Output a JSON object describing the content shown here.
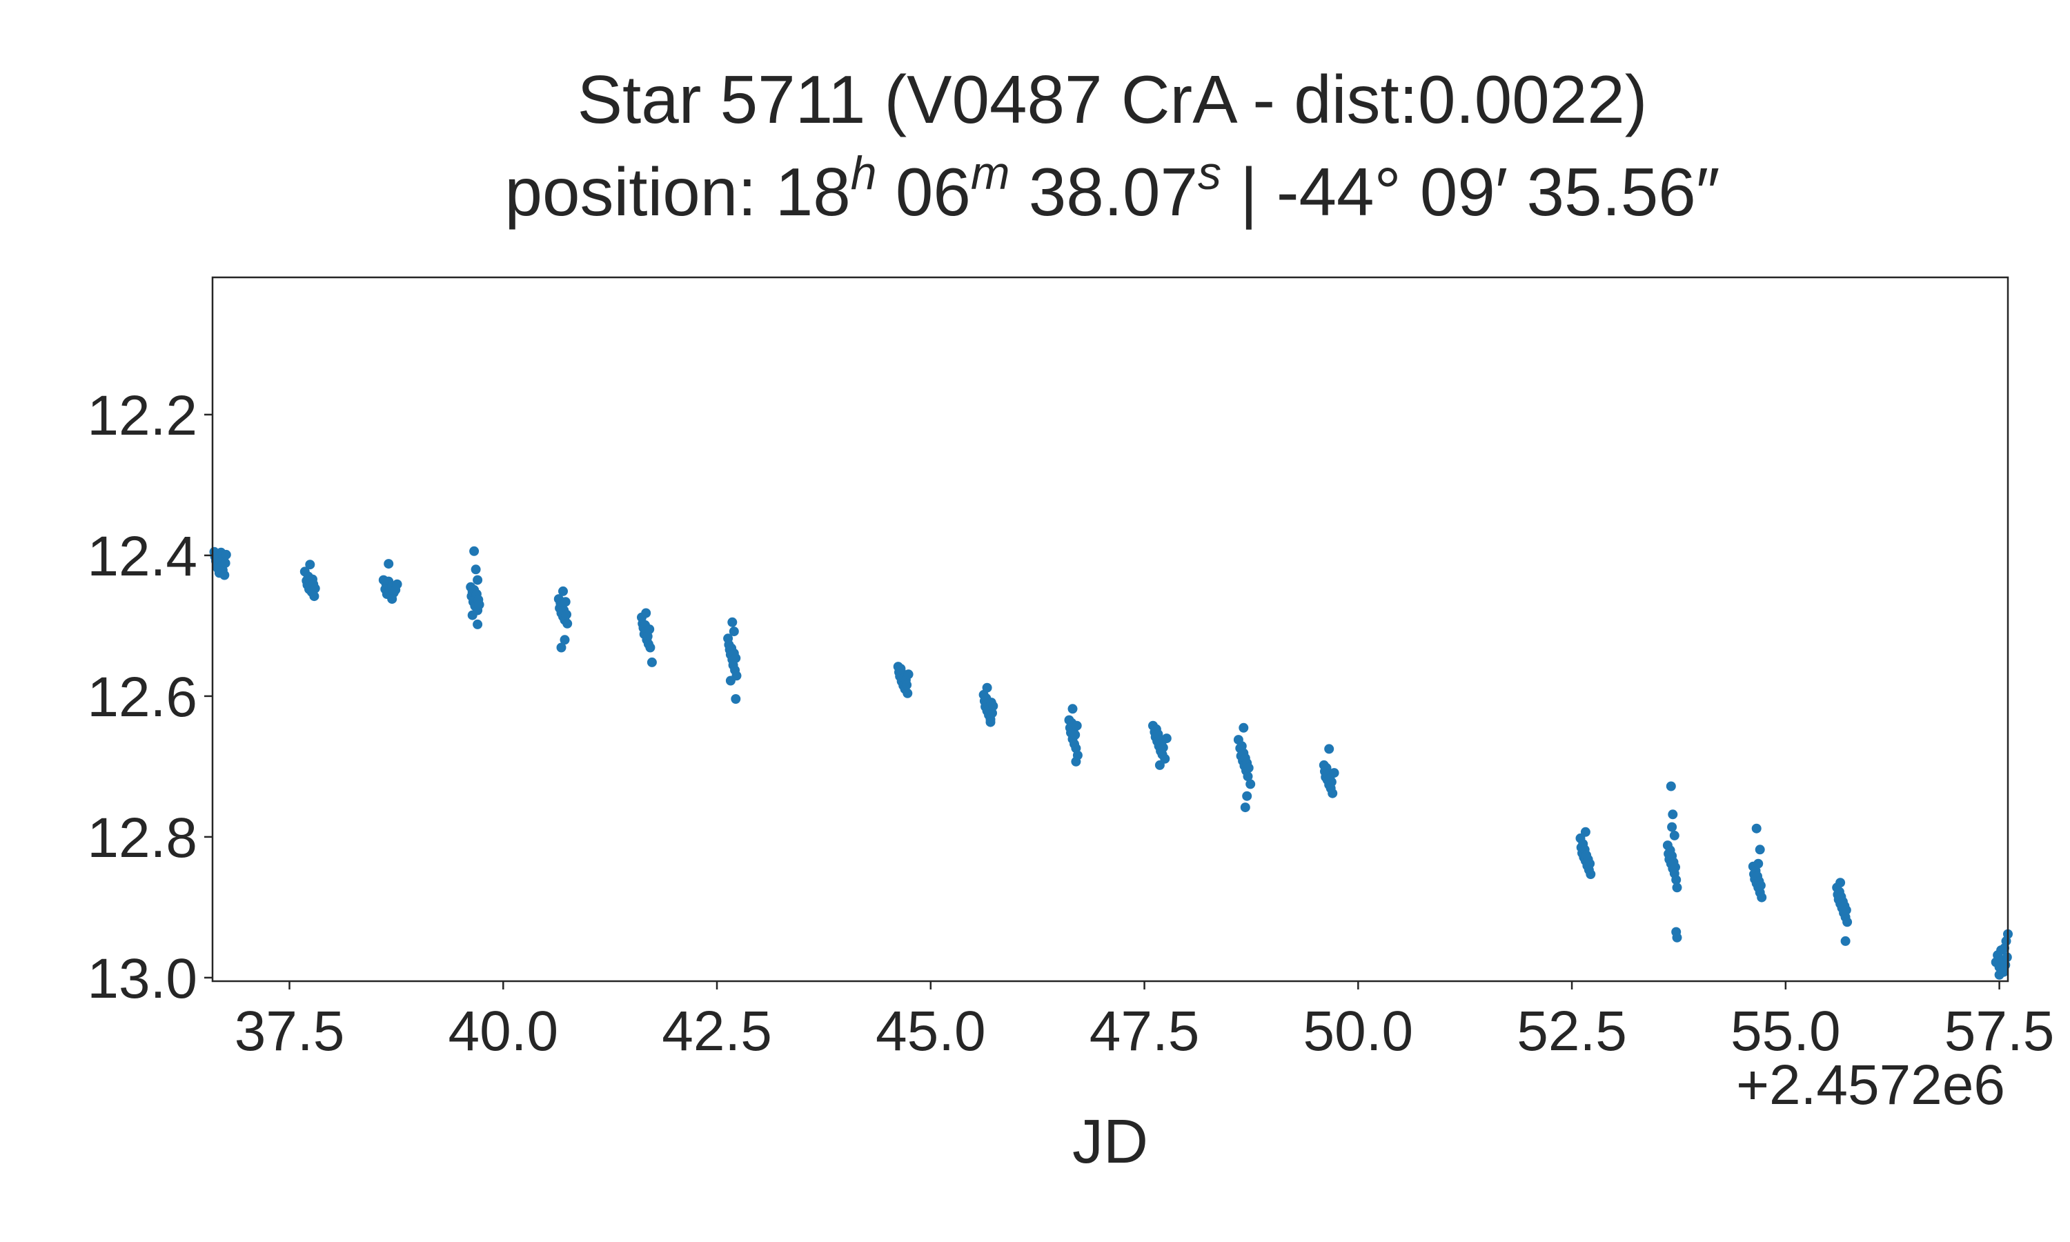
{
  "chart_data": {
    "type": "scatter",
    "title": "Star 5711 (V0487 CrA - dist:0.0022)",
    "subtitle": {
      "prefix": "position: 18",
      "sup_h": "h",
      "part2": " 06",
      "sup_m": "m",
      "part3": " 38.07",
      "sup_s": "s",
      "part4": " | -44° 09′ 35.56″"
    },
    "xlabel": "JD",
    "ylabel": "",
    "x_offset_label": "+2.4572e6",
    "x_offset": 2457200,
    "xlim": [
      36.6,
      57.6
    ],
    "ylim": [
      13.005,
      12.005
    ],
    "y_inverted": true,
    "x_ticks": [
      37.5,
      40.0,
      42.5,
      45.0,
      47.5,
      50.0,
      52.5,
      55.0,
      57.5
    ],
    "x_tick_labels": [
      "37.5",
      "40.0",
      "42.5",
      "45.0",
      "47.5",
      "50.0",
      "52.5",
      "55.0",
      "57.5"
    ],
    "y_ticks": [
      12.2,
      12.4,
      12.6,
      12.8,
      13.0
    ],
    "y_tick_labels": [
      "12.2",
      "12.4",
      "12.6",
      "12.8",
      "13.0"
    ],
    "grid": false,
    "marker_color": "#1f77b4",
    "series": [
      {
        "points": [
          [
            36.62,
            12.395
          ],
          [
            36.63,
            12.402
          ],
          [
            36.64,
            12.408
          ],
          [
            36.65,
            12.412
          ],
          [
            36.66,
            12.418
          ],
          [
            36.67,
            12.401
          ],
          [
            36.68,
            12.425
          ],
          [
            36.69,
            12.409
          ],
          [
            36.7,
            12.396
          ],
          [
            36.71,
            12.415
          ],
          [
            36.72,
            12.421
          ],
          [
            36.73,
            12.404
          ],
          [
            36.74,
            12.428
          ],
          [
            36.75,
            12.411
          ],
          [
            36.76,
            12.399
          ],
          [
            37.68,
            12.423
          ],
          [
            37.7,
            12.436
          ],
          [
            37.71,
            12.442
          ],
          [
            37.72,
            12.43
          ],
          [
            37.73,
            12.448
          ],
          [
            37.74,
            12.437
          ],
          [
            37.75,
            12.445
          ],
          [
            37.76,
            12.452
          ],
          [
            37.77,
            12.434
          ],
          [
            37.78,
            12.441
          ],
          [
            37.79,
            12.458
          ],
          [
            37.8,
            12.447
          ],
          [
            37.74,
            12.413
          ],
          [
            38.6,
            12.435
          ],
          [
            38.62,
            12.448
          ],
          [
            38.63,
            12.44
          ],
          [
            38.64,
            12.455
          ],
          [
            38.65,
            12.442
          ],
          [
            38.66,
            12.437
          ],
          [
            38.67,
            12.451
          ],
          [
            38.68,
            12.446
          ],
          [
            38.69,
            12.458
          ],
          [
            38.7,
            12.444
          ],
          [
            38.72,
            12.453
          ],
          [
            38.74,
            12.449
          ],
          [
            38.76,
            12.441
          ],
          [
            38.66,
            12.412
          ],
          [
            38.7,
            12.462
          ],
          [
            39.62,
            12.445
          ],
          [
            39.63,
            12.458
          ],
          [
            39.64,
            12.452
          ],
          [
            39.65,
            12.466
          ],
          [
            39.66,
            12.449
          ],
          [
            39.67,
            12.472
          ],
          [
            39.68,
            12.461
          ],
          [
            39.69,
            12.455
          ],
          [
            39.7,
            12.478
          ],
          [
            39.71,
            12.463
          ],
          [
            39.72,
            12.47
          ],
          [
            39.66,
            12.394
          ],
          [
            39.68,
            12.42
          ],
          [
            39.7,
            12.435
          ],
          [
            39.64,
            12.485
          ],
          [
            39.7,
            12.498
          ],
          [
            40.65,
            12.462
          ],
          [
            40.66,
            12.475
          ],
          [
            40.67,
            12.468
          ],
          [
            40.68,
            12.482
          ],
          [
            40.69,
            12.471
          ],
          [
            40.7,
            12.487
          ],
          [
            40.71,
            12.478
          ],
          [
            40.72,
            12.492
          ],
          [
            40.73,
            12.466
          ],
          [
            40.74,
            12.484
          ],
          [
            40.75,
            12.497
          ],
          [
            40.7,
            12.451
          ],
          [
            40.68,
            12.531
          ],
          [
            40.72,
            12.52
          ],
          [
            41.62,
            12.488
          ],
          [
            41.63,
            12.497
          ],
          [
            41.64,
            12.503
          ],
          [
            41.65,
            12.512
          ],
          [
            41.66,
            12.499
          ],
          [
            41.67,
            12.508
          ],
          [
            41.68,
            12.52
          ],
          [
            41.69,
            12.515
          ],
          [
            41.7,
            12.526
          ],
          [
            41.71,
            12.505
          ],
          [
            41.72,
            12.531
          ],
          [
            41.67,
            12.482
          ],
          [
            41.74,
            12.552
          ],
          [
            42.63,
            12.518
          ],
          [
            42.64,
            12.527
          ],
          [
            42.65,
            12.534
          ],
          [
            42.66,
            12.541
          ],
          [
            42.67,
            12.532
          ],
          [
            42.68,
            12.548
          ],
          [
            42.69,
            12.556
          ],
          [
            42.7,
            12.539
          ],
          [
            42.71,
            12.563
          ],
          [
            42.72,
            12.546
          ],
          [
            42.73,
            12.571
          ],
          [
            42.68,
            12.495
          ],
          [
            42.7,
            12.508
          ],
          [
            42.66,
            12.578
          ],
          [
            42.72,
            12.604
          ],
          [
            44.62,
            12.558
          ],
          [
            44.63,
            12.566
          ],
          [
            44.64,
            12.572
          ],
          [
            44.65,
            12.561
          ],
          [
            44.66,
            12.579
          ],
          [
            44.67,
            12.568
          ],
          [
            44.68,
            12.585
          ],
          [
            44.69,
            12.574
          ],
          [
            44.7,
            12.59
          ],
          [
            44.71,
            12.577
          ],
          [
            44.72,
            12.584
          ],
          [
            44.73,
            12.596
          ],
          [
            44.74,
            12.569
          ],
          [
            45.62,
            12.598
          ],
          [
            45.63,
            12.607
          ],
          [
            45.64,
            12.615
          ],
          [
            45.65,
            12.603
          ],
          [
            45.66,
            12.621
          ],
          [
            45.67,
            12.611
          ],
          [
            45.68,
            12.627
          ],
          [
            45.69,
            12.618
          ],
          [
            45.7,
            12.633
          ],
          [
            45.71,
            12.609
          ],
          [
            45.72,
            12.624
          ],
          [
            45.73,
            12.614
          ],
          [
            45.66,
            12.588
          ],
          [
            45.7,
            12.637
          ],
          [
            46.62,
            12.634
          ],
          [
            46.63,
            12.645
          ],
          [
            46.64,
            12.652
          ],
          [
            46.65,
            12.638
          ],
          [
            46.66,
            12.661
          ],
          [
            46.67,
            12.649
          ],
          [
            46.68,
            12.668
          ],
          [
            46.69,
            12.655
          ],
          [
            46.7,
            12.674
          ],
          [
            46.71,
            12.642
          ],
          [
            46.72,
            12.684
          ],
          [
            46.66,
            12.618
          ],
          [
            46.7,
            12.693
          ],
          [
            47.6,
            12.642
          ],
          [
            47.62,
            12.651
          ],
          [
            47.63,
            12.658
          ],
          [
            47.64,
            12.647
          ],
          [
            47.65,
            12.664
          ],
          [
            47.66,
            12.654
          ],
          [
            47.67,
            12.671
          ],
          [
            47.68,
            12.662
          ],
          [
            47.69,
            12.678
          ],
          [
            47.7,
            12.667
          ],
          [
            47.71,
            12.683
          ],
          [
            47.72,
            12.673
          ],
          [
            47.74,
            12.689
          ],
          [
            47.76,
            12.66
          ],
          [
            47.68,
            12.698
          ],
          [
            48.6,
            12.662
          ],
          [
            48.62,
            12.674
          ],
          [
            48.63,
            12.685
          ],
          [
            48.64,
            12.671
          ],
          [
            48.65,
            12.692
          ],
          [
            48.66,
            12.681
          ],
          [
            48.67,
            12.699
          ],
          [
            48.68,
            12.688
          ],
          [
            48.69,
            12.706
          ],
          [
            48.7,
            12.695
          ],
          [
            48.71,
            12.714
          ],
          [
            48.72,
            12.702
          ],
          [
            48.74,
            12.725
          ],
          [
            48.66,
            12.645
          ],
          [
            48.7,
            12.742
          ],
          [
            48.68,
            12.758
          ],
          [
            49.6,
            12.698
          ],
          [
            49.61,
            12.707
          ],
          [
            49.62,
            12.715
          ],
          [
            49.63,
            12.702
          ],
          [
            49.64,
            12.719
          ],
          [
            49.65,
            12.711
          ],
          [
            49.66,
            12.726
          ],
          [
            49.67,
            12.717
          ],
          [
            49.68,
            12.731
          ],
          [
            49.69,
            12.722
          ],
          [
            49.7,
            12.738
          ],
          [
            49.72,
            12.709
          ],
          [
            49.66,
            12.675
          ]
        ]
      },
      {
        "points": [
          [
            52.6,
            12.802
          ],
          [
            52.61,
            12.815
          ],
          [
            52.62,
            12.823
          ],
          [
            52.63,
            12.81
          ],
          [
            52.64,
            12.829
          ],
          [
            52.65,
            12.818
          ],
          [
            52.66,
            12.834
          ],
          [
            52.67,
            12.826
          ],
          [
            52.68,
            12.841
          ],
          [
            52.69,
            12.832
          ],
          [
            52.7,
            12.847
          ],
          [
            52.71,
            12.838
          ],
          [
            52.72,
            12.853
          ],
          [
            52.66,
            12.793
          ],
          [
            53.62,
            12.812
          ],
          [
            53.63,
            12.824
          ],
          [
            53.64,
            12.832
          ],
          [
            53.65,
            12.819
          ],
          [
            53.66,
            12.838
          ],
          [
            53.67,
            12.827
          ],
          [
            53.68,
            12.845
          ],
          [
            53.69,
            12.836
          ],
          [
            53.7,
            12.852
          ],
          [
            53.71,
            12.843
          ],
          [
            53.72,
            12.861
          ],
          [
            53.73,
            12.872
          ],
          [
            53.66,
            12.728
          ],
          [
            53.68,
            12.768
          ],
          [
            53.67,
            12.786
          ],
          [
            53.7,
            12.798
          ],
          [
            53.72,
            12.935
          ],
          [
            53.73,
            12.943
          ],
          [
            54.62,
            12.842
          ],
          [
            54.63,
            12.853
          ],
          [
            54.64,
            12.86
          ],
          [
            54.65,
            12.848
          ],
          [
            54.66,
            12.866
          ],
          [
            54.67,
            12.856
          ],
          [
            54.68,
            12.872
          ],
          [
            54.69,
            12.863
          ],
          [
            54.7,
            12.879
          ],
          [
            54.71,
            12.869
          ],
          [
            54.72,
            12.886
          ],
          [
            54.66,
            12.788
          ],
          [
            54.7,
            12.818
          ],
          [
            54.68,
            12.838
          ],
          [
            55.6,
            12.872
          ],
          [
            55.61,
            12.882
          ],
          [
            55.62,
            12.889
          ],
          [
            55.63,
            12.878
          ],
          [
            55.64,
            12.895
          ],
          [
            55.65,
            12.885
          ],
          [
            55.66,
            12.901
          ],
          [
            55.67,
            12.892
          ],
          [
            55.68,
            12.908
          ],
          [
            55.69,
            12.898
          ],
          [
            55.7,
            12.914
          ],
          [
            55.71,
            12.904
          ],
          [
            55.72,
            12.921
          ],
          [
            55.64,
            12.865
          ],
          [
            55.7,
            12.948
          ],
          [
            57.46,
            12.978
          ],
          [
            57.48,
            12.968
          ],
          [
            57.5,
            12.985
          ],
          [
            57.52,
            12.961
          ],
          [
            57.54,
            12.975
          ],
          [
            57.55,
            12.992
          ],
          [
            57.56,
            12.958
          ],
          [
            57.57,
            12.982
          ],
          [
            57.58,
            12.948
          ],
          [
            57.59,
            12.971
          ],
          [
            57.6,
            12.938
          ],
          [
            57.5,
            12.996
          ]
        ]
      }
    ]
  }
}
